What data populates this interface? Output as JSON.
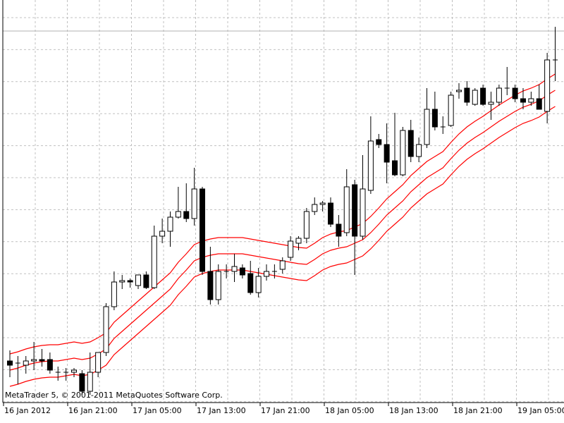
{
  "chart_data": {
    "type": "candlestick",
    "copyright": "MetaTrader 5, © 2001-2011 MetaQuotes Software Corp.",
    "x_labels": [
      "16 Jan 2012",
      "16 Jan 21:00",
      "17 Jan 05:00",
      "17 Jan 13:00",
      "17 Jan 21:00",
      "18 Jan 05:00",
      "18 Jan 13:00",
      "18 Jan 21:00",
      "19 Jan 05:00"
    ],
    "open": [
      88,
      85,
      82,
      88,
      90,
      90,
      72,
      72,
      72,
      70,
      45,
      72,
      100,
      165,
      200,
      202,
      195,
      210,
      192,
      265,
      272,
      292,
      300,
      290,
      332,
      215,
      175,
      215,
      215,
      220,
      212,
      185,
      208,
      215,
      218,
      235,
      255,
      262,
      300,
      310,
      312,
      282,
      270,
      338,
      265,
      330,
      402,
      395,
      372,
      352,
      415,
      378,
      395,
      445,
      420,
      422,
      470,
      475,
      452,
      475,
      452,
      455,
      475,
      475,
      460,
      455,
      460,
      442,
      515
    ],
    "high": [
      103,
      95,
      95,
      115,
      105,
      100,
      80,
      78,
      78,
      75,
      100,
      100,
      170,
      215,
      210,
      205,
      210,
      215,
      280,
      290,
      300,
      335,
      340,
      362,
      335,
      250,
      225,
      225,
      240,
      225,
      230,
      220,
      225,
      225,
      235,
      265,
      265,
      305,
      320,
      315,
      320,
      295,
      360,
      345,
      380,
      435,
      410,
      425,
      440,
      420,
      430,
      405,
      475,
      470,
      435,
      470,
      482,
      485,
      475,
      480,
      470,
      480,
      505,
      480,
      475,
      470,
      480,
      525,
      562
    ],
    "low": [
      65,
      55,
      70,
      75,
      80,
      70,
      60,
      60,
      65,
      40,
      40,
      65,
      95,
      160,
      190,
      192,
      190,
      190,
      190,
      255,
      250,
      290,
      285,
      280,
      210,
      168,
      168,
      205,
      200,
      205,
      182,
      178,
      202,
      205,
      212,
      230,
      245,
      255,
      295,
      300,
      278,
      250,
      265,
      210,
      260,
      325,
      390,
      340,
      350,
      350,
      370,
      370,
      390,
      415,
      410,
      420,
      460,
      450,
      450,
      450,
      430,
      450,
      465,
      455,
      445,
      450,
      445,
      425,
      485
    ],
    "close": [
      82,
      85,
      88,
      90,
      88,
      75,
      72,
      72,
      75,
      45,
      72,
      100,
      165,
      200,
      202,
      200,
      210,
      192,
      265,
      272,
      292,
      300,
      290,
      332,
      215,
      175,
      215,
      215,
      222,
      210,
      185,
      208,
      215,
      215,
      230,
      258,
      262,
      300,
      310,
      312,
      282,
      265,
      335,
      265,
      332,
      400,
      395,
      370,
      352,
      415,
      378,
      395,
      445,
      420,
      420,
      465,
      472,
      455,
      472,
      452,
      455,
      475,
      475,
      460,
      455,
      460,
      445,
      515,
      515
    ],
    "up_color": "#ffffff",
    "down_color": "#000000",
    "ylim": [
      30,
      600
    ],
    "series": [
      {
        "color": "#ff0000",
        "values": [
          98,
          101,
          105,
          108,
          110,
          111,
          111,
          113,
          115,
          113,
          115,
          121,
          128,
          143,
          153,
          163,
          173,
          183,
          193,
          203,
          213,
          228,
          240,
          253,
          258,
          261,
          263,
          263,
          263,
          263,
          261,
          259,
          257,
          255,
          253,
          251,
          249,
          248,
          255,
          263,
          268,
          271,
          273,
          278,
          283,
          293,
          305,
          318,
          328,
          338,
          351,
          361,
          371,
          378,
          385,
          398,
          410,
          420,
          428,
          435,
          443,
          451,
          458,
          465,
          471,
          475,
          480,
          488,
          495
        ]
      },
      {
        "color": "#ff0000",
        "values": [
          75,
          78,
          82,
          85,
          87,
          88,
          88,
          90,
          92,
          90,
          92,
          98,
          105,
          120,
          130,
          140,
          150,
          160,
          170,
          180,
          190,
          205,
          217,
          230,
          235,
          238,
          240,
          240,
          240,
          240,
          238,
          236,
          234,
          232,
          230,
          228,
          226,
          225,
          232,
          240,
          245,
          248,
          250,
          255,
          260,
          270,
          282,
          295,
          305,
          315,
          328,
          338,
          348,
          355,
          362,
          375,
          387,
          397,
          405,
          412,
          420,
          428,
          435,
          442,
          448,
          452,
          457,
          465,
          472
        ]
      },
      {
        "color": "#ff0000",
        "values": [
          52,
          55,
          59,
          62,
          64,
          65,
          65,
          67,
          69,
          67,
          69,
          75,
          82,
          97,
          107,
          117,
          127,
          137,
          147,
          157,
          167,
          182,
          194,
          207,
          212,
          215,
          217,
          217,
          217,
          217,
          215,
          213,
          211,
          209,
          207,
          205,
          203,
          202,
          209,
          217,
          222,
          225,
          227,
          232,
          237,
          247,
          259,
          272,
          282,
          292,
          305,
          315,
          325,
          332,
          339,
          352,
          364,
          374,
          382,
          389,
          397,
          405,
          412,
          419,
          425,
          429,
          434,
          442,
          449
        ]
      }
    ]
  }
}
